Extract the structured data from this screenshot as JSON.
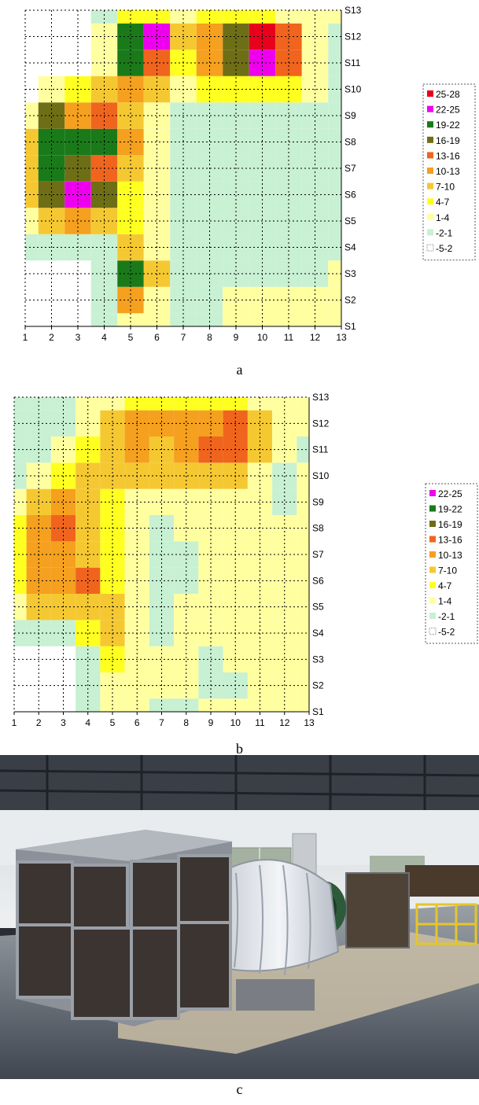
{
  "chart_data": [
    {
      "type": "heatmap",
      "title": "",
      "xlabel": "",
      "ylabel": "",
      "x": [
        1,
        2,
        3,
        4,
        5,
        6,
        7,
        8,
        9,
        10,
        11,
        12,
        13
      ],
      "y": [
        "S1",
        "S2",
        "S3",
        "S4",
        "S5",
        "S6",
        "S7",
        "S8",
        "S9",
        "S10",
        "S11",
        "S12",
        "S13"
      ],
      "legend": [
        "25-28",
        "22-25",
        "19-22",
        "16-19",
        "13-16",
        "10-13",
        "7-10",
        "4-7",
        "1-4",
        "-2-1",
        "-5-2"
      ],
      "legend_colors": [
        "#e8001c",
        "#ee00ee",
        "#1a7a1a",
        "#6e6e16",
        "#f0641e",
        "#f5a01e",
        "#f5c832",
        "#ffff20",
        "#ffffa0",
        "#c8f0d2",
        "#ffffff"
      ],
      "values": [
        [
          -3,
          -3,
          -3,
          0,
          3,
          3,
          0,
          0,
          3,
          3,
          3,
          3,
          3
        ],
        [
          -3,
          -3,
          -3,
          0,
          12,
          3,
          0,
          0,
          3,
          3,
          3,
          3,
          3
        ],
        [
          -3,
          -3,
          -3,
          0,
          20,
          8,
          0,
          0,
          0,
          0,
          0,
          0,
          3
        ],
        [
          0,
          0,
          0,
          0,
          8,
          3,
          0,
          0,
          0,
          0,
          0,
          0,
          0
        ],
        [
          3,
          8,
          12,
          8,
          5,
          3,
          0,
          0,
          0,
          0,
          0,
          0,
          0
        ],
        [
          8,
          17,
          24,
          17,
          5,
          3,
          0,
          0,
          0,
          0,
          0,
          0,
          0
        ],
        [
          8,
          20,
          17,
          14,
          8,
          3,
          0,
          0,
          0,
          0,
          0,
          0,
          0
        ],
        [
          8,
          20,
          20,
          20,
          12,
          3,
          0,
          0,
          0,
          0,
          0,
          0,
          0
        ],
        [
          3,
          16,
          12,
          14,
          8,
          3,
          0,
          0,
          0,
          0,
          0,
          0,
          0
        ],
        [
          -3,
          3,
          5,
          8,
          12,
          8,
          3,
          5,
          5,
          5,
          5,
          3,
          0
        ],
        [
          -3,
          -3,
          -3,
          3,
          20,
          14,
          5,
          12,
          17,
          22,
          14,
          3,
          0
        ],
        [
          -3,
          -3,
          -3,
          3,
          20,
          23,
          8,
          12,
          17,
          26,
          14,
          3,
          0
        ],
        [
          -3,
          -3,
          -3,
          0,
          5,
          5,
          3,
          5,
          5,
          5,
          3,
          3,
          3
        ]
      ],
      "caption": "a"
    },
    {
      "type": "heatmap",
      "title": "",
      "xlabel": "",
      "ylabel": "",
      "x": [
        1,
        2,
        3,
        4,
        5,
        6,
        7,
        8,
        9,
        10,
        11,
        12,
        13
      ],
      "y": [
        "S1",
        "S2",
        "S3",
        "S4",
        "S5",
        "S6",
        "S7",
        "S8",
        "S9",
        "S10",
        "S11",
        "S12",
        "S13"
      ],
      "legend": [
        "22-25",
        "19-22",
        "16-19",
        "13-16",
        "10-13",
        "7-10",
        "4-7",
        "1-4",
        "-2-1",
        "-5-2"
      ],
      "legend_colors": [
        "#ee00ee",
        "#1a7a1a",
        "#6e6e16",
        "#f0641e",
        "#f5a01e",
        "#f5c832",
        "#ffff20",
        "#ffffa0",
        "#c8f0d2",
        "#ffffff"
      ],
      "values": [
        [
          -3,
          -3,
          -3,
          0,
          3,
          3,
          0,
          0,
          3,
          3,
          3,
          3,
          3
        ],
        [
          -3,
          -3,
          -3,
          0,
          3,
          3,
          3,
          3,
          0,
          0,
          3,
          3,
          3
        ],
        [
          -3,
          -3,
          -3,
          0,
          5,
          3,
          3,
          3,
          0,
          3,
          3,
          3,
          3
        ],
        [
          0,
          0,
          0,
          5,
          8,
          3,
          0,
          3,
          3,
          3,
          3,
          3,
          3
        ],
        [
          3,
          8,
          8,
          8,
          8,
          3,
          0,
          3,
          3,
          3,
          3,
          3,
          3
        ],
        [
          5,
          11,
          11,
          13,
          5,
          3,
          0,
          0,
          3,
          3,
          3,
          3,
          3
        ],
        [
          5,
          11,
          11,
          8,
          5,
          3,
          0,
          0,
          3,
          3,
          3,
          3,
          3
        ],
        [
          5,
          11,
          14,
          8,
          5,
          3,
          0,
          3,
          3,
          3,
          3,
          3,
          3
        ],
        [
          3,
          8,
          11,
          8,
          5,
          3,
          3,
          3,
          3,
          3,
          3,
          0,
          3
        ],
        [
          0,
          3,
          5,
          8,
          8,
          8,
          8,
          8,
          8,
          8,
          3,
          0,
          3
        ],
        [
          0,
          0,
          3,
          5,
          8,
          11,
          8,
          11,
          13,
          14,
          8,
          3,
          0
        ],
        [
          0,
          0,
          0,
          3,
          8,
          11,
          11,
          11,
          11,
          13,
          8,
          3,
          3
        ],
        [
          0,
          0,
          0,
          3,
          3,
          5,
          5,
          5,
          5,
          5,
          3,
          3,
          3
        ]
      ],
      "caption": "b"
    }
  ],
  "photo": {
    "caption": "c"
  }
}
